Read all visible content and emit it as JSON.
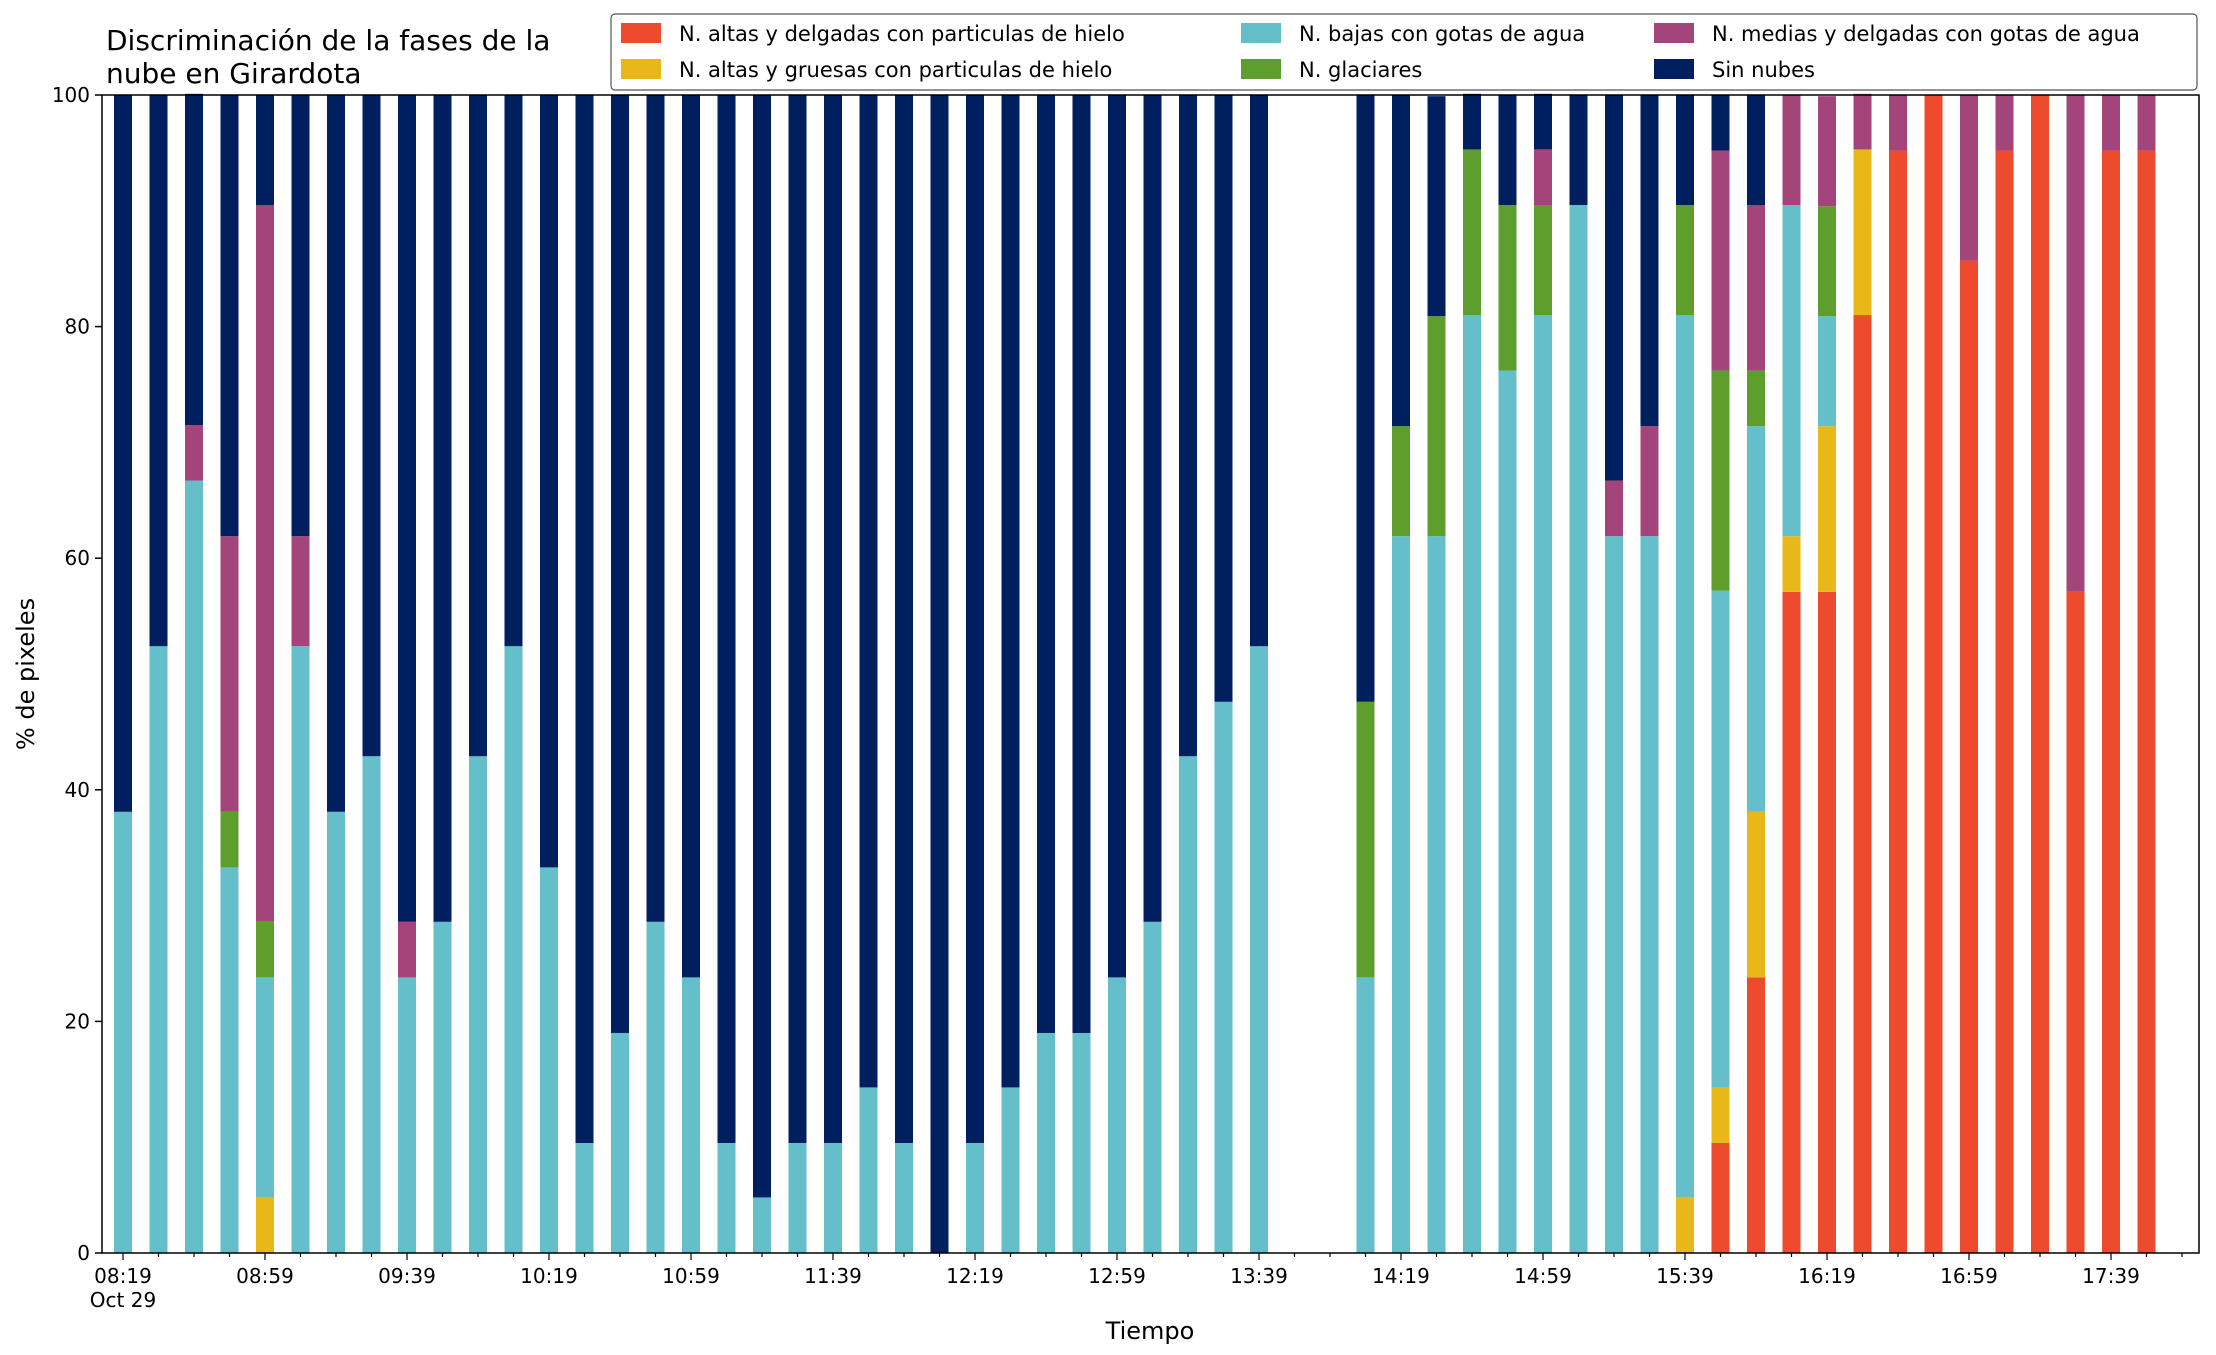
{
  "chart_data": {
    "type": "bar",
    "stacked": true,
    "title": [
      "Discriminación de la fases de la",
      "nube en Girardota"
    ],
    "xlabel": "Tiempo",
    "ylabel": "% de pixeles",
    "ylim": [
      0,
      100
    ],
    "yticks": [
      0,
      20,
      40,
      60,
      80,
      100
    ],
    "grid": false,
    "legend_position": "top-right",
    "date_label": "Oct 29",
    "x_start": "08:19",
    "x_step_minutes": 10,
    "xtick_labels": [
      "08:19",
      "08:59",
      "09:39",
      "10:19",
      "10:59",
      "11:39",
      "12:19",
      "12:59",
      "13:39",
      "14:19",
      "14:59",
      "15:39",
      "16:19",
      "16:59",
      "17:39"
    ],
    "categories": [
      "08:19",
      "08:29",
      "08:39",
      "08:49",
      "08:59",
      "09:09",
      "09:19",
      "09:29",
      "09:39",
      "09:49",
      "09:59",
      "10:09",
      "10:19",
      "10:29",
      "10:39",
      "10:49",
      "10:59",
      "11:09",
      "11:19",
      "11:29",
      "11:39",
      "11:49",
      "11:59",
      "12:09",
      "12:19",
      "12:29",
      "12:39",
      "12:49",
      "12:59",
      "13:09",
      "13:19",
      "13:29",
      "13:39",
      "13:49",
      "13:59",
      "14:09",
      "14:19",
      "14:29",
      "14:39",
      "14:49",
      "14:59",
      "15:09",
      "15:19",
      "15:29",
      "15:39",
      "15:49",
      "15:59",
      "16:09",
      "16:19",
      "16:29",
      "16:39",
      "16:49",
      "16:59",
      "17:09",
      "17:19",
      "17:29",
      "17:39",
      "17:49"
    ],
    "series": [
      {
        "name": "N. altas y delgadas con particulas de hielo",
        "color": "#ee4a2d",
        "values": [
          0,
          0,
          0,
          0,
          0,
          0,
          0,
          0,
          0,
          0,
          0,
          0,
          0,
          0,
          0,
          0,
          0,
          0,
          0,
          0,
          0,
          0,
          0,
          0,
          0,
          0,
          0,
          0,
          0,
          0,
          0,
          0,
          0,
          null,
          null,
          0,
          0,
          0,
          0,
          0,
          0,
          0,
          0,
          0,
          0,
          9.5,
          23.8,
          57.1,
          57.1,
          81,
          95.2,
          100,
          85.7,
          95.2,
          100,
          57.1,
          95.2,
          95.2
        ]
      },
      {
        "name": "N. altas y gruesas con particulas de hielo",
        "color": "#e8b819",
        "values": [
          0,
          0,
          0,
          0,
          4.8,
          0,
          0,
          0,
          0,
          0,
          0,
          0,
          0,
          0,
          0,
          0,
          0,
          0,
          0,
          0,
          0,
          0,
          0,
          0,
          0,
          0,
          0,
          0,
          0,
          0,
          0,
          0,
          0,
          null,
          null,
          0,
          0,
          0,
          0,
          0,
          0,
          0,
          0,
          0,
          4.8,
          4.8,
          14.3,
          4.8,
          14.3,
          14.3,
          0,
          0,
          0,
          0,
          0,
          0,
          0,
          0
        ]
      },
      {
        "name": "N. bajas con gotas de agua",
        "color": "#64bfca",
        "values": [
          38.1,
          52.4,
          66.7,
          33.3,
          19,
          52.4,
          38.1,
          42.9,
          23.8,
          28.6,
          42.9,
          52.4,
          33.3,
          9.5,
          19,
          28.6,
          23.8,
          9.5,
          4.8,
          9.5,
          9.5,
          14.3,
          9.5,
          0,
          9.5,
          14.3,
          19,
          19,
          23.8,
          28.6,
          42.9,
          47.6,
          52.4,
          null,
          null,
          23.8,
          61.9,
          61.9,
          81,
          76.2,
          81,
          90.5,
          61.9,
          61.9,
          76.2,
          42.9,
          33.3,
          28.6,
          9.5,
          0,
          0,
          0,
          0,
          0,
          0,
          0,
          0,
          0
        ]
      },
      {
        "name": "N. glaciares",
        "color": "#5e9e2d",
        "values": [
          0,
          0,
          0,
          4.8,
          4.8,
          0,
          0,
          0,
          0,
          0,
          0,
          0,
          0,
          0,
          0,
          0,
          0,
          0,
          0,
          0,
          0,
          0,
          0,
          0,
          0,
          0,
          0,
          0,
          0,
          0,
          0,
          0,
          0,
          null,
          null,
          23.8,
          9.5,
          19,
          14.3,
          14.3,
          9.5,
          0,
          0,
          0,
          9.5,
          19,
          4.8,
          0,
          9.5,
          0,
          0,
          0,
          0,
          0,
          0,
          0,
          0,
          0
        ]
      },
      {
        "name": "N. medias y delgadas con gotas de agua",
        "color": "#a3457a",
        "values": [
          0,
          0,
          4.8,
          23.8,
          61.9,
          9.5,
          0,
          0,
          4.8,
          0,
          0,
          0,
          0,
          0,
          0,
          0,
          0,
          0,
          0,
          0,
          0,
          0,
          0,
          0,
          0,
          0,
          0,
          0,
          0,
          0,
          0,
          0,
          0,
          null,
          null,
          0,
          0,
          0,
          0,
          0,
          4.8,
          0,
          4.8,
          9.5,
          0,
          19,
          14.3,
          9.5,
          9.5,
          4.8,
          4.8,
          0,
          14.3,
          4.8,
          0,
          42.9,
          4.8,
          4.8
        ]
      },
      {
        "name": "Sin nubes",
        "color": "#001f5f",
        "values": [
          61.9,
          47.6,
          28.6,
          38.1,
          9.5,
          38.1,
          61.9,
          57.1,
          71.4,
          71.4,
          57.1,
          47.6,
          66.7,
          90.5,
          81,
          71.4,
          76.2,
          90.5,
          95.2,
          90.5,
          90.5,
          85.7,
          90.5,
          100,
          90.5,
          85.7,
          81,
          81,
          76.2,
          71.4,
          57.1,
          52.4,
          47.6,
          null,
          null,
          52.4,
          28.6,
          19,
          4.8,
          9.5,
          4.8,
          9.5,
          33.3,
          28.6,
          9.5,
          4.8,
          9.5,
          0,
          0,
          0,
          0,
          0,
          0,
          0,
          0,
          0,
          0,
          0
        ]
      }
    ]
  }
}
